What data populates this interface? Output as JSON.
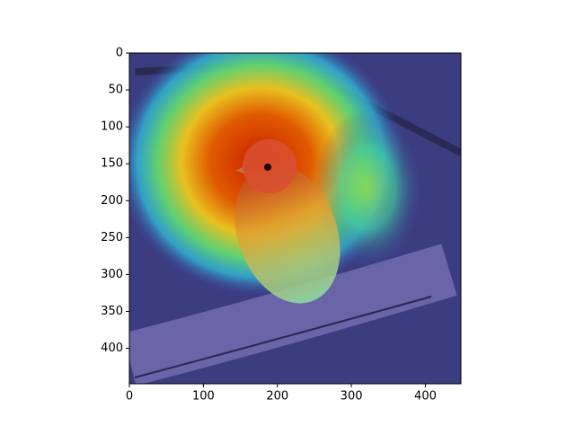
{
  "chart_data": {
    "type": "image",
    "xlim": [
      0,
      448
    ],
    "ylim": [
      448,
      0
    ],
    "xticks": [
      0,
      100,
      200,
      300,
      400
    ],
    "yticks": [
      0,
      50,
      100,
      150,
      200,
      250,
      300,
      350,
      400
    ]
  }
}
